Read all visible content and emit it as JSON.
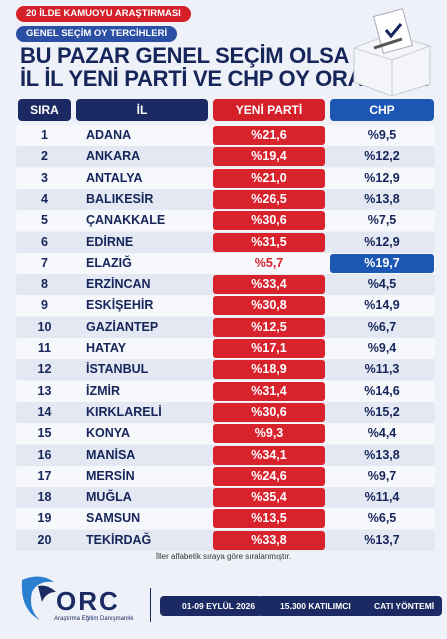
{
  "header": {
    "tags": [
      "20 İLDE KAMUOYU ARAŞTIRMASI",
      "GENEL SEÇİM OY TERCİHLERİ"
    ],
    "title": [
      "BU PAZAR GENEL SEÇİM OLSA",
      "İL İL YENİ PARTİ VE CHP OY ORANLARI"
    ]
  },
  "table": {
    "columns": [
      "SIRA",
      "İL",
      "YENİ PARTİ",
      "CHP"
    ],
    "rows": [
      [
        "1",
        "ADANA",
        "%21,6",
        "%9,5"
      ],
      [
        "2",
        "ANKARA",
        "%19,4",
        "%12,2"
      ],
      [
        "3",
        "ANTALYA",
        "%21,0",
        "%12,9"
      ],
      [
        "4",
        "BALIKESİR",
        "%26,5",
        "%13,8"
      ],
      [
        "5",
        "ÇANAKKALE",
        "%30,6",
        "%7,5"
      ],
      [
        "6",
        "EDİRNE",
        "%31,5",
        "%12,9"
      ],
      [
        "7",
        "ELAZIĞ",
        "%5,7",
        "%19,7"
      ],
      [
        "8",
        "ERZİNCAN",
        "%33,4",
        "%4,5"
      ],
      [
        "9",
        "ESKİŞEHİR",
        "%30,8",
        "%14,9"
      ],
      [
        "10",
        "GAZİANTEP",
        "%12,5",
        "%6,7"
      ],
      [
        "11",
        "HATAY",
        "%17,1",
        "%9,4"
      ],
      [
        "12",
        "İSTANBUL",
        "%18,9",
        "%11,3"
      ],
      [
        "13",
        "İZMİR",
        "%31,4",
        "%14,6"
      ],
      [
        "14",
        "KIRKLARELİ",
        "%30,6",
        "%15,2"
      ],
      [
        "15",
        "KONYA",
        "%9,3",
        "%4,4"
      ],
      [
        "16",
        "MANİSA",
        "%34,1",
        "%13,8"
      ],
      [
        "17",
        "MERSİN",
        "%24,6",
        "%9,7"
      ],
      [
        "18",
        "MUĞLA",
        "%35,4",
        "%11,4"
      ],
      [
        "19",
        "SAMSUN",
        "%13,5",
        "%6,5"
      ],
      [
        "20",
        "TEKİRDAĞ",
        "%33,8",
        "%13,7"
      ]
    ]
  },
  "note": "İller alfabetik sıraya göre sıralanmıştır.",
  "footer": {
    "logo": "ORC",
    "logo_subtitle": "Araştırma Eğitim Danışmanlık",
    "date": "01-09 EYLÜL 2026",
    "participants": "15.300 KATILIMCI",
    "method": "CATI YÖNTEMİ"
  }
}
